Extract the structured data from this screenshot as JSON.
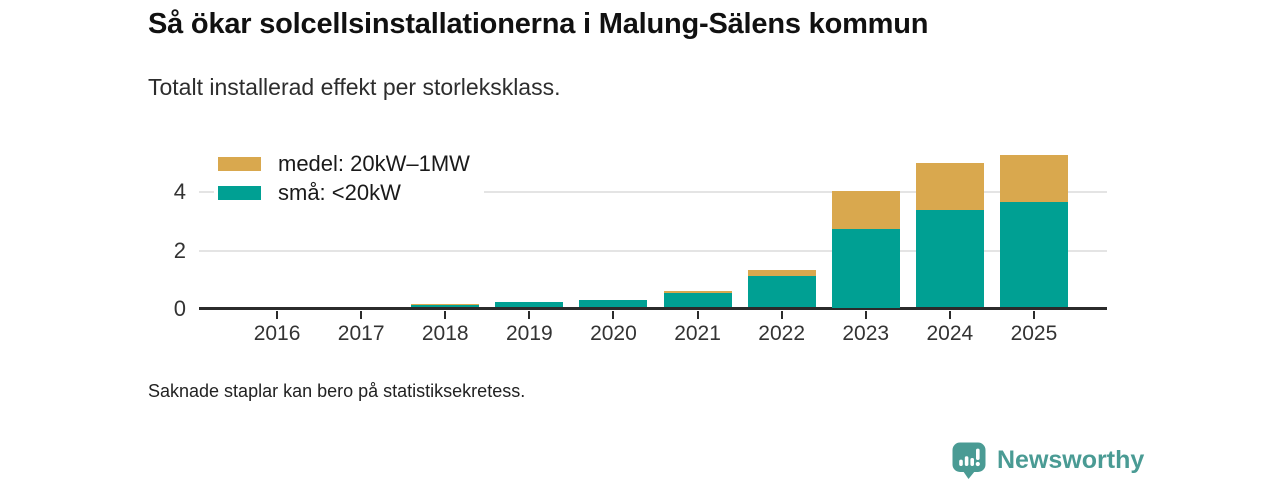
{
  "header": {
    "title": "Så ökar solcellsinstallationerna i Malung-Sälens kommun",
    "subtitle": "Totalt installerad effekt per storleksklass."
  },
  "footer": {
    "footnote": "Saknade staplar kan bero på statistiksekretess.",
    "brand": "Newsworthy"
  },
  "colors": {
    "medel": "#d9a84e",
    "sma": "#00a093",
    "axis": "#2b2b2b",
    "gridline": "#e4e4e4",
    "brand": "#4a9b94"
  },
  "chart_data": {
    "type": "bar",
    "stacked": true,
    "title": "Så ökar solcellsinstallationerna i Malung-Sälens kommun",
    "subtitle": "Totalt installerad effekt per storleksklass.",
    "xlabel": "",
    "ylabel": "",
    "categories": [
      "2016",
      "2017",
      "2018",
      "2019",
      "2020",
      "2021",
      "2022",
      "2023",
      "2024",
      "2025"
    ],
    "series": [
      {
        "name": "medel: 20kW–1MW",
        "key": "medel",
        "color": "#d9a84e",
        "values": [
          null,
          null,
          0.03,
          0,
          0.03,
          0.07,
          0.2,
          1.3,
          1.6,
          1.6
        ]
      },
      {
        "name": "små: <20kW",
        "key": "sma",
        "color": "#00a093",
        "values": [
          null,
          null,
          0.1,
          0.2,
          0.24,
          0.48,
          1.08,
          2.7,
          3.35,
          3.6
        ]
      }
    ],
    "yticks": [
      0,
      2,
      4
    ],
    "ylim": [
      0,
      5.6
    ],
    "grid": true,
    "legend_position": "top-left",
    "missing_categories": [
      "2016",
      "2017"
    ]
  }
}
